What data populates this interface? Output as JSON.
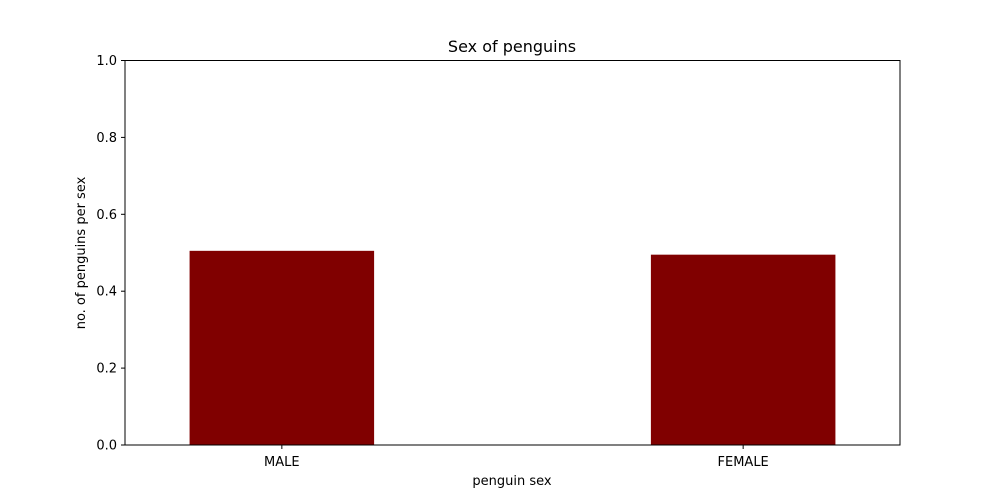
{
  "chart_data": {
    "type": "bar",
    "title": "Sex of penguins",
    "xlabel": "penguin sex",
    "ylabel": "no. of penguins per sex",
    "categories": [
      "MALE",
      "FEMALE"
    ],
    "values": [
      0.505,
      0.495
    ],
    "ylim": [
      0,
      1.0
    ],
    "yticks": [
      "0.0",
      "0.2",
      "0.4",
      "0.6",
      "0.8",
      "1.0"
    ],
    "bar_color": "#800000",
    "grid": false,
    "legend": "none"
  }
}
